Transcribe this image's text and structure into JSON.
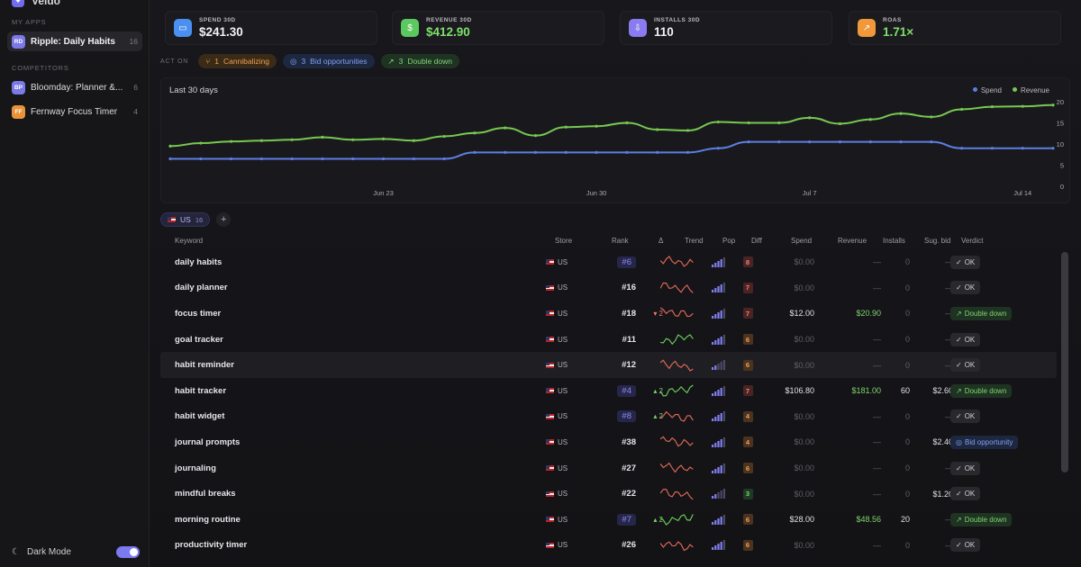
{
  "brand": {
    "name": "Veldo"
  },
  "sidebar": {
    "my_apps_label": "MY APPS",
    "my_apps": [
      {
        "initials": "RD",
        "name": "Ripple: Daily Habits",
        "count": "16",
        "color": "#7b79e8"
      }
    ],
    "competitors_label": "COMPETITORS",
    "competitors": [
      {
        "initials": "BP",
        "name": "Bloomday: Planner &...",
        "count": "6",
        "color": "#7b79e8"
      },
      {
        "initials": "FF",
        "name": "Fernway Focus Timer",
        "count": "4",
        "color": "#e8923a"
      }
    ],
    "dark_mode_label": "Dark Mode",
    "dark_mode_on": true
  },
  "kpis": [
    {
      "label": "SPEND 30D",
      "value": "$241.30",
      "icon": "card-icon",
      "color": "#4a90f0",
      "green": false
    },
    {
      "label": "REVENUE 30D",
      "value": "$412.90",
      "icon": "dollar-icon",
      "color": "#5cc860",
      "green": true
    },
    {
      "label": "INSTALLS 30D",
      "value": "110",
      "icon": "download-icon",
      "color": "#8a7cf0",
      "green": false
    },
    {
      "label": "ROAS",
      "value": "1.71×",
      "icon": "trend-up-icon",
      "color": "#f0983a",
      "green": true
    }
  ],
  "act_on": {
    "label": "ACT ON",
    "pills": [
      {
        "icon": "merge-icon",
        "count": "1",
        "text": "Cannibalizing",
        "style": "orange"
      },
      {
        "icon": "target-icon",
        "count": "3",
        "text": "Bid opportunities",
        "style": "blue"
      },
      {
        "icon": "arrow-up-right-icon",
        "count": "3",
        "text": "Double down",
        "style": "green"
      }
    ]
  },
  "chart_data": {
    "type": "line",
    "title": "Last 30 days",
    "x_tick_labels": [
      "Jun 23",
      "Jun 30",
      "Jul 7",
      "Jul 14"
    ],
    "y_ticks": [
      0,
      5,
      10,
      15,
      20
    ],
    "ylim": [
      0,
      20
    ],
    "legend_position": "top-right",
    "series": [
      {
        "name": "Spend",
        "color": "#5b7fe0",
        "values": [
          6.5,
          6.5,
          6.5,
          6.5,
          6.5,
          6.5,
          6.5,
          6.5,
          6.5,
          6.5,
          8,
          8,
          8,
          8,
          8,
          8,
          8,
          8,
          9,
          10.5,
          10.5,
          10.5,
          10.5,
          10.5,
          10.5,
          10.5,
          9,
          9,
          9,
          9
        ]
      },
      {
        "name": "Revenue",
        "color": "#78c850",
        "values": [
          9.5,
          10.2,
          10.6,
          10.8,
          11,
          11.6,
          11,
          11.2,
          10.8,
          11.8,
          12.6,
          13.8,
          12,
          14,
          14.2,
          15,
          13.4,
          13.2,
          15.2,
          15,
          15,
          16.2,
          14.8,
          15.8,
          17.2,
          16.4,
          18.2,
          18.8,
          18.9,
          19.2
        ]
      }
    ]
  },
  "store_filter": {
    "label": "US",
    "count": "16",
    "add": "+"
  },
  "table": {
    "headers": {
      "keyword": "Keyword",
      "store": "Store",
      "rank": "Rank",
      "delta": "Δ",
      "trend": "Trend",
      "pop": "Pop",
      "diff": "Diff",
      "spend": "Spend",
      "revenue": "Revenue",
      "installs": "Installs",
      "sug_bid": "Sug. bid",
      "verdict": "Verdict"
    },
    "rows": [
      {
        "keyword": "daily habits",
        "store": "US",
        "rank": "#6",
        "rank_hl": true,
        "delta": "",
        "delta_dir": "",
        "trend": "red",
        "pop": 4,
        "diff": "8",
        "spend": "$0.00",
        "revenue": "—",
        "installs": "0",
        "sug_bid": "—",
        "verdict": "OK",
        "vstyle": "ok",
        "highlight": false
      },
      {
        "keyword": "daily planner",
        "store": "US",
        "rank": "#16",
        "rank_hl": false,
        "delta": "",
        "delta_dir": "",
        "trend": "red",
        "pop": 4,
        "diff": "7",
        "spend": "$0.00",
        "revenue": "—",
        "installs": "0",
        "sug_bid": "—",
        "verdict": "OK",
        "vstyle": "ok",
        "highlight": false
      },
      {
        "keyword": "focus timer",
        "store": "US",
        "rank": "#18",
        "rank_hl": false,
        "delta": "▾ 2",
        "delta_dir": "down",
        "trend": "red",
        "pop": 4,
        "diff": "7",
        "spend": "$12.00",
        "revenue": "$20.90",
        "installs": "0",
        "sug_bid": "—",
        "verdict": "Double down",
        "vstyle": "dd",
        "highlight": false
      },
      {
        "keyword": "goal tracker",
        "store": "US",
        "rank": "#11",
        "rank_hl": false,
        "delta": "",
        "delta_dir": "",
        "trend": "green",
        "pop": 4,
        "diff": "6",
        "spend": "$0.00",
        "revenue": "—",
        "installs": "0",
        "sug_bid": "—",
        "verdict": "OK",
        "vstyle": "ok",
        "highlight": false
      },
      {
        "keyword": "habit reminder",
        "store": "US",
        "rank": "#12",
        "rank_hl": false,
        "delta": "",
        "delta_dir": "",
        "trend": "red",
        "pop": 2,
        "diff": "6",
        "spend": "$0.00",
        "revenue": "—",
        "installs": "0",
        "sug_bid": "—",
        "verdict": "OK",
        "vstyle": "ok",
        "highlight": true
      },
      {
        "keyword": "habit tracker",
        "store": "US",
        "rank": "#4",
        "rank_hl": true,
        "delta": "▴ 2",
        "delta_dir": "up",
        "trend": "green",
        "pop": 4,
        "diff": "7",
        "spend": "$106.80",
        "revenue": "$181.00",
        "installs": "60",
        "sug_bid": "$2.60",
        "verdict": "Double down",
        "vstyle": "dd",
        "highlight": false
      },
      {
        "keyword": "habit widget",
        "store": "US",
        "rank": "#8",
        "rank_hl": true,
        "delta": "▴ 2",
        "delta_dir": "up",
        "trend": "red",
        "pop": 4,
        "diff": "4",
        "spend": "$0.00",
        "revenue": "—",
        "installs": "0",
        "sug_bid": "—",
        "verdict": "OK",
        "vstyle": "ok",
        "highlight": false
      },
      {
        "keyword": "journal prompts",
        "store": "US",
        "rank": "#38",
        "rank_hl": false,
        "delta": "",
        "delta_dir": "",
        "trend": "red",
        "pop": 4,
        "diff": "4",
        "spend": "$0.00",
        "revenue": "—",
        "installs": "0",
        "sug_bid": "$2.40",
        "verdict": "Bid opportunity",
        "vstyle": "bid",
        "highlight": false
      },
      {
        "keyword": "journaling",
        "store": "US",
        "rank": "#27",
        "rank_hl": false,
        "delta": "",
        "delta_dir": "",
        "trend": "red",
        "pop": 4,
        "diff": "6",
        "spend": "$0.00",
        "revenue": "—",
        "installs": "0",
        "sug_bid": "—",
        "verdict": "OK",
        "vstyle": "ok",
        "highlight": false
      },
      {
        "keyword": "mindful breaks",
        "store": "US",
        "rank": "#22",
        "rank_hl": false,
        "delta": "",
        "delta_dir": "",
        "trend": "red",
        "pop": 2,
        "diff": "3",
        "spend": "$0.00",
        "revenue": "—",
        "installs": "0",
        "sug_bid": "$1.20",
        "verdict": "OK",
        "vstyle": "ok",
        "highlight": false
      },
      {
        "keyword": "morning routine",
        "store": "US",
        "rank": "#7",
        "rank_hl": true,
        "delta": "▴ 2",
        "delta_dir": "up",
        "trend": "green",
        "pop": 4,
        "diff": "6",
        "spend": "$28.00",
        "revenue": "$48.56",
        "installs": "20",
        "sug_bid": "—",
        "verdict": "Double down",
        "vstyle": "dd",
        "highlight": false
      },
      {
        "keyword": "productivity timer",
        "store": "US",
        "rank": "#26",
        "rank_hl": false,
        "delta": "",
        "delta_dir": "",
        "trend": "red",
        "pop": 4,
        "diff": "6",
        "spend": "$0.00",
        "revenue": "—",
        "installs": "0",
        "sug_bid": "—",
        "verdict": "OK",
        "vstyle": "ok",
        "highlight": false
      }
    ]
  }
}
